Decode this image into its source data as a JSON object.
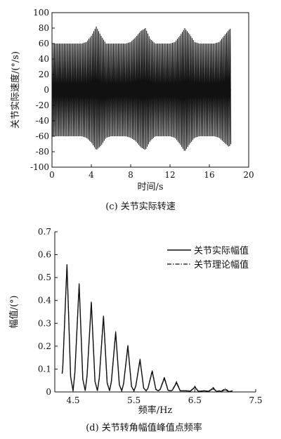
{
  "chart_data": [
    {
      "type": "line",
      "title": "",
      "caption": "(c) 关节实际转速",
      "xlabel": "时间/s",
      "ylabel": "关节实际速度/(°/s)",
      "xlim": [
        0,
        20
      ],
      "ylim": [
        -100,
        100
      ],
      "x_ticks": [
        "0",
        "4",
        "8",
        "12",
        "16",
        "20"
      ],
      "y_ticks": [
        "100",
        "80",
        "60",
        "40",
        "20",
        "0",
        "-20",
        "-40",
        "-60",
        "-80",
        "-100"
      ],
      "grid": false,
      "description_of_series": "Oscillating joint speed, ~±60 baseline with bursts to ~±80 near t=4.5, 9.2, 13.6 and 18 s; ends at t≈18.2 s",
      "series": [
        {
          "x": [
            0.0,
            0.5,
            1.0,
            1.5,
            2.0,
            2.5,
            3.0,
            3.5,
            4.0,
            4.5,
            5.0,
            5.5,
            6.0,
            6.5,
            7.0,
            7.5,
            8.0,
            8.5,
            9.0,
            9.5,
            10.0,
            10.5,
            11.0,
            11.5,
            12.0,
            12.5,
            13.0,
            13.5,
            14.0,
            14.5,
            15.0,
            15.5,
            16.0,
            16.5,
            17.0,
            17.5,
            18.0,
            18.2
          ],
          "y_upper": [
            60,
            60,
            60,
            60,
            60,
            60,
            60,
            62,
            70,
            82,
            70,
            60,
            60,
            60,
            60,
            60,
            62,
            68,
            76,
            80,
            66,
            60,
            60,
            60,
            60,
            62,
            70,
            80,
            72,
            62,
            60,
            60,
            60,
            60,
            62,
            70,
            78,
            80
          ],
          "y_lower": [
            -60,
            -60,
            -60,
            -60,
            -60,
            -60,
            -60,
            -62,
            -68,
            -78,
            -72,
            -62,
            -60,
            -60,
            -60,
            -60,
            -62,
            -66,
            -74,
            -78,
            -66,
            -60,
            -60,
            -60,
            -60,
            -62,
            -70,
            -80,
            -70,
            -62,
            -60,
            -60,
            -60,
            -60,
            -62,
            -68,
            -74,
            -70
          ]
        }
      ]
    },
    {
      "type": "line",
      "title": "",
      "caption": "(d) 关节转角幅值峰值点频率",
      "xlabel": "频率/Hz",
      "ylabel": "幅值/(°)",
      "xlim": [
        4.2,
        7.5
      ],
      "ylim": [
        0,
        0.7
      ],
      "x_ticks": [
        "4.5",
        "5.5",
        "6.5",
        "7.5"
      ],
      "x_tick_values": [
        4.5,
        5.5,
        6.5,
        7.5
      ],
      "y_ticks": [
        "0",
        "0.1",
        "0.2",
        "0.3",
        "0.4",
        "0.5",
        "0.6",
        "0.7"
      ],
      "grid": false,
      "legend_position": "top-right",
      "series": [
        {
          "name": "关节实际幅值",
          "style": "solid",
          "peak_x": [
            4.4,
            4.6,
            4.8,
            5.0,
            5.2,
            5.4,
            5.6,
            5.8,
            6.0,
            6.2,
            6.5,
            6.8,
            7.0
          ],
          "peak_y": [
            0.555,
            0.47,
            0.39,
            0.33,
            0.26,
            0.2,
            0.14,
            0.09,
            0.06,
            0.04,
            0.02,
            0.015,
            0.01
          ]
        },
        {
          "name": "关节理论幅值",
          "style": "dash-dot",
          "peak_x": [
            4.4,
            4.6,
            4.8,
            5.0,
            5.2,
            5.4,
            5.6,
            5.8,
            6.0,
            6.2,
            6.5,
            6.8,
            7.0
          ],
          "peak_y": [
            0.56,
            0.475,
            0.395,
            0.335,
            0.265,
            0.205,
            0.145,
            0.095,
            0.065,
            0.045,
            0.025,
            0.02,
            0.015
          ]
        }
      ]
    }
  ]
}
